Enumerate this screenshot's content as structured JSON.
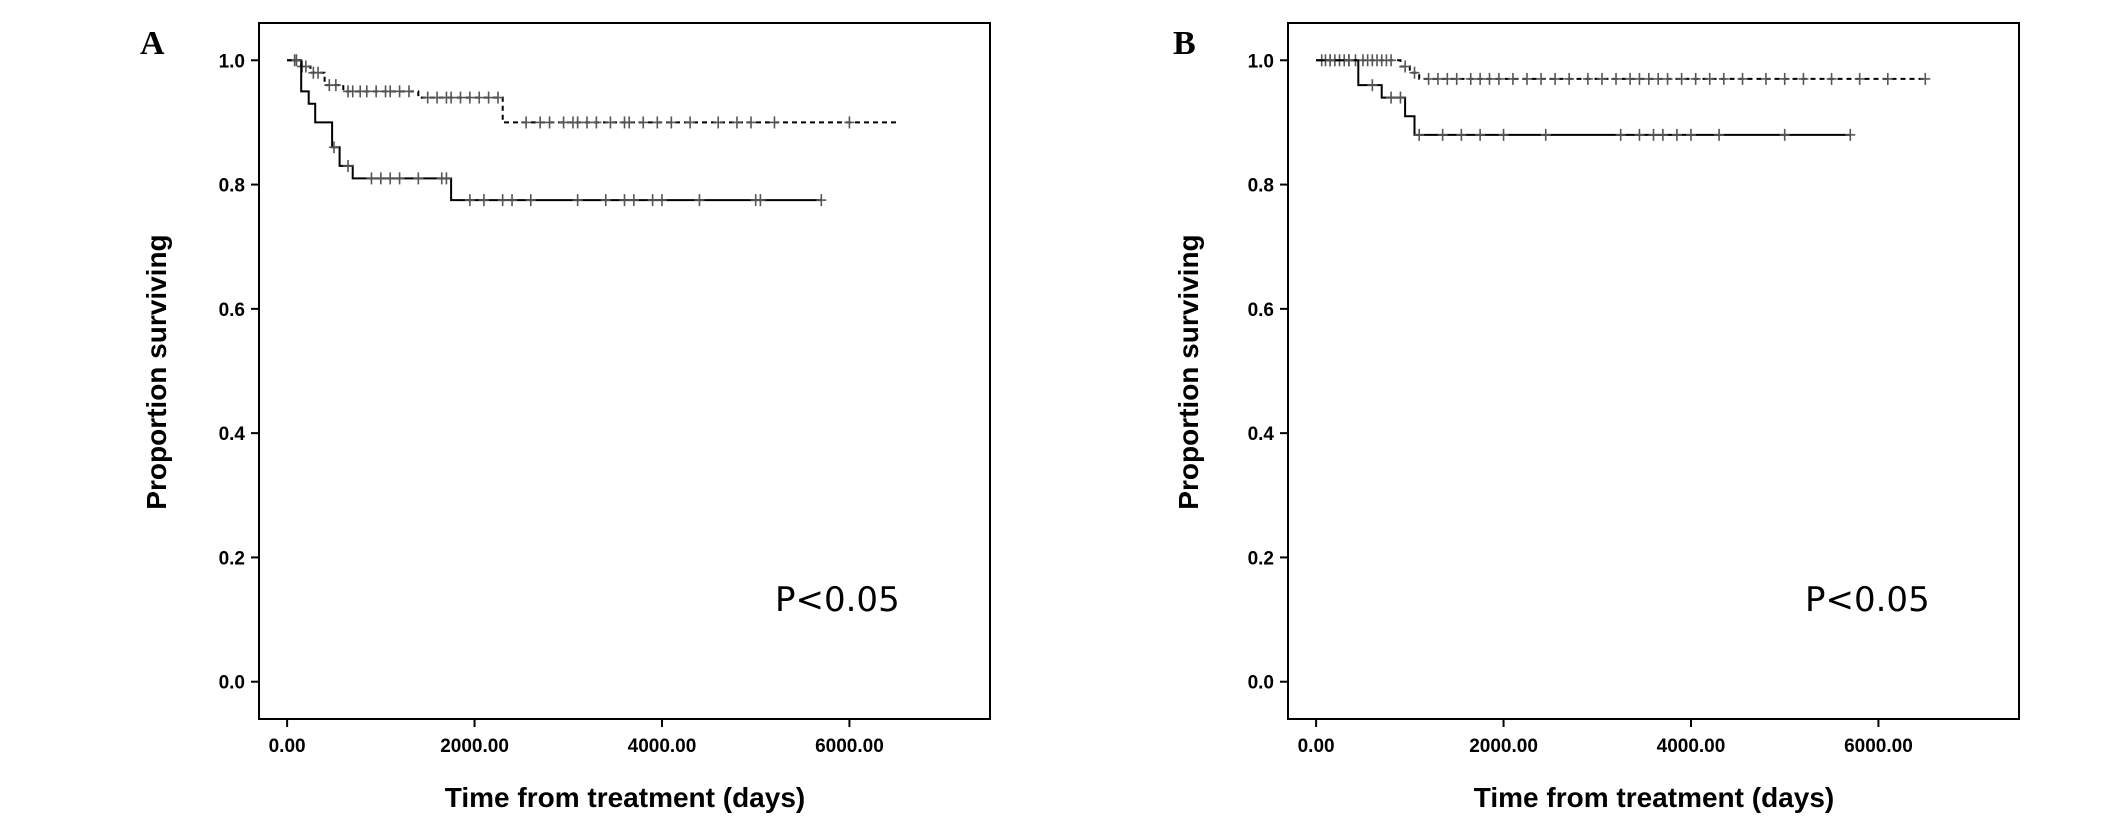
{
  "chart_data": [
    {
      "type": "line",
      "subtype": "kaplan-meier",
      "panel_label": "A",
      "xlabel": "Time from treatment (days)",
      "ylabel": "Proportion surviving",
      "x_ticks": [
        "0.00",
        "2000.00",
        "4000.00",
        "6000.00"
      ],
      "x_tick_values": [
        0,
        2000,
        4000,
        6000
      ],
      "y_ticks": [
        "0.0",
        "0.2",
        "0.4",
        "0.6",
        "0.8",
        "1.0"
      ],
      "y_tick_values": [
        0,
        0.2,
        0.4,
        0.6,
        0.8,
        1.0
      ],
      "xlim": [
        -300,
        7500
      ],
      "ylim": [
        -0.06,
        1.06
      ],
      "annotation": "P<0.05",
      "series": [
        {
          "style": "dashed",
          "steps": [
            [
              0,
              1.0
            ],
            [
              150,
              0.99
            ],
            [
              250,
              0.98
            ],
            [
              400,
              0.96
            ],
            [
              600,
              0.95
            ],
            [
              1400,
              0.94
            ],
            [
              2300,
              0.9
            ],
            [
              6500,
              0.9
            ]
          ],
          "censored": [
            [
              80,
              1.0
            ],
            [
              160,
              0.99
            ],
            [
              200,
              0.99
            ],
            [
              280,
              0.98
            ],
            [
              330,
              0.98
            ],
            [
              450,
              0.96
            ],
            [
              520,
              0.96
            ],
            [
              650,
              0.95
            ],
            [
              700,
              0.95
            ],
            [
              780,
              0.95
            ],
            [
              850,
              0.95
            ],
            [
              950,
              0.95
            ],
            [
              1050,
              0.95
            ],
            [
              1100,
              0.95
            ],
            [
              1200,
              0.95
            ],
            [
              1300,
              0.95
            ],
            [
              1500,
              0.94
            ],
            [
              1600,
              0.94
            ],
            [
              1700,
              0.94
            ],
            [
              1750,
              0.94
            ],
            [
              1850,
              0.94
            ],
            [
              1950,
              0.94
            ],
            [
              2050,
              0.94
            ],
            [
              2150,
              0.94
            ],
            [
              2250,
              0.94
            ],
            [
              2550,
              0.9
            ],
            [
              2700,
              0.9
            ],
            [
              2800,
              0.9
            ],
            [
              2950,
              0.9
            ],
            [
              3050,
              0.9
            ],
            [
              3100,
              0.9
            ],
            [
              3200,
              0.9
            ],
            [
              3300,
              0.9
            ],
            [
              3450,
              0.9
            ],
            [
              3600,
              0.9
            ],
            [
              3650,
              0.9
            ],
            [
              3800,
              0.9
            ],
            [
              3950,
              0.9
            ],
            [
              4100,
              0.9
            ],
            [
              4300,
              0.9
            ],
            [
              4600,
              0.9
            ],
            [
              4800,
              0.9
            ],
            [
              4950,
              0.9
            ],
            [
              5200,
              0.9
            ],
            [
              6000,
              0.9
            ]
          ]
        },
        {
          "style": "solid",
          "steps": [
            [
              0,
              1.0
            ],
            [
              150,
              0.95
            ],
            [
              230,
              0.93
            ],
            [
              300,
              0.9
            ],
            [
              480,
              0.86
            ],
            [
              560,
              0.83
            ],
            [
              700,
              0.81
            ],
            [
              1750,
              0.775
            ],
            [
              5700,
              0.775
            ]
          ],
          "censored": [
            [
              100,
              1.0
            ],
            [
              500,
              0.86
            ],
            [
              650,
              0.83
            ],
            [
              900,
              0.81
            ],
            [
              1000,
              0.81
            ],
            [
              1100,
              0.81
            ],
            [
              1200,
              0.81
            ],
            [
              1400,
              0.81
            ],
            [
              1650,
              0.81
            ],
            [
              1700,
              0.81
            ],
            [
              1950,
              0.775
            ],
            [
              2100,
              0.775
            ],
            [
              2300,
              0.775
            ],
            [
              2400,
              0.775
            ],
            [
              2600,
              0.775
            ],
            [
              3100,
              0.775
            ],
            [
              3400,
              0.775
            ],
            [
              3600,
              0.775
            ],
            [
              3700,
              0.775
            ],
            [
              3900,
              0.775
            ],
            [
              4000,
              0.775
            ],
            [
              4400,
              0.775
            ],
            [
              5000,
              0.775
            ],
            [
              5050,
              0.775
            ],
            [
              5700,
              0.775
            ]
          ]
        }
      ]
    },
    {
      "type": "line",
      "subtype": "kaplan-meier",
      "panel_label": "B",
      "xlabel": "Time from treatment (days)",
      "ylabel": "Proportion surviving",
      "x_ticks": [
        "0.00",
        "2000.00",
        "4000.00",
        "6000.00"
      ],
      "x_tick_values": [
        0,
        2000,
        4000,
        6000
      ],
      "y_ticks": [
        "0.0",
        "0.2",
        "0.4",
        "0.6",
        "0.8",
        "1.0"
      ],
      "y_tick_values": [
        0,
        0.2,
        0.4,
        0.6,
        0.8,
        1.0
      ],
      "xlim": [
        -300,
        7500
      ],
      "ylim": [
        -0.06,
        1.06
      ],
      "annotation": "P<0.05",
      "series": [
        {
          "style": "dashed",
          "steps": [
            [
              0,
              1.0
            ],
            [
              900,
              0.99
            ],
            [
              1000,
              0.98
            ],
            [
              1100,
              0.97
            ],
            [
              6500,
              0.97
            ]
          ],
          "censored": [
            [
              60,
              1.0
            ],
            [
              100,
              1.0
            ],
            [
              150,
              1.0
            ],
            [
              200,
              1.0
            ],
            [
              250,
              1.0
            ],
            [
              300,
              1.0
            ],
            [
              350,
              1.0
            ],
            [
              420,
              1.0
            ],
            [
              500,
              1.0
            ],
            [
              550,
              1.0
            ],
            [
              600,
              1.0
            ],
            [
              650,
              1.0
            ],
            [
              700,
              1.0
            ],
            [
              750,
              1.0
            ],
            [
              800,
              1.0
            ],
            [
              950,
              0.99
            ],
            [
              1050,
              0.98
            ],
            [
              1200,
              0.97
            ],
            [
              1300,
              0.97
            ],
            [
              1400,
              0.97
            ],
            [
              1500,
              0.97
            ],
            [
              1650,
              0.97
            ],
            [
              1750,
              0.97
            ],
            [
              1850,
              0.97
            ],
            [
              1950,
              0.97
            ],
            [
              2100,
              0.97
            ],
            [
              2250,
              0.97
            ],
            [
              2400,
              0.97
            ],
            [
              2550,
              0.97
            ],
            [
              2700,
              0.97
            ],
            [
              2900,
              0.97
            ],
            [
              3050,
              0.97
            ],
            [
              3200,
              0.97
            ],
            [
              3350,
              0.97
            ],
            [
              3450,
              0.97
            ],
            [
              3550,
              0.97
            ],
            [
              3650,
              0.97
            ],
            [
              3750,
              0.97
            ],
            [
              3900,
              0.97
            ],
            [
              4050,
              0.97
            ],
            [
              4200,
              0.97
            ],
            [
              4350,
              0.97
            ],
            [
              4550,
              0.97
            ],
            [
              4800,
              0.97
            ],
            [
              5000,
              0.97
            ],
            [
              5200,
              0.97
            ],
            [
              5500,
              0.97
            ],
            [
              5800,
              0.97
            ],
            [
              6100,
              0.97
            ],
            [
              6500,
              0.97
            ]
          ]
        },
        {
          "style": "solid",
          "steps": [
            [
              0,
              1.0
            ],
            [
              450,
              0.96
            ],
            [
              700,
              0.94
            ],
            [
              950,
              0.91
            ],
            [
              1050,
              0.88
            ],
            [
              5700,
              0.88
            ]
          ],
          "censored": [
            [
              150,
              1.0
            ],
            [
              350,
              1.0
            ],
            [
              600,
              0.96
            ],
            [
              800,
              0.94
            ],
            [
              900,
              0.94
            ],
            [
              1100,
              0.88
            ],
            [
              1350,
              0.88
            ],
            [
              1550,
              0.88
            ],
            [
              1750,
              0.88
            ],
            [
              2000,
              0.88
            ],
            [
              2450,
              0.88
            ],
            [
              3250,
              0.88
            ],
            [
              3450,
              0.88
            ],
            [
              3600,
              0.88
            ],
            [
              3700,
              0.88
            ],
            [
              3850,
              0.88
            ],
            [
              4000,
              0.88
            ],
            [
              4300,
              0.88
            ],
            [
              5000,
              0.88
            ],
            [
              5700,
              0.88
            ]
          ]
        }
      ]
    }
  ]
}
